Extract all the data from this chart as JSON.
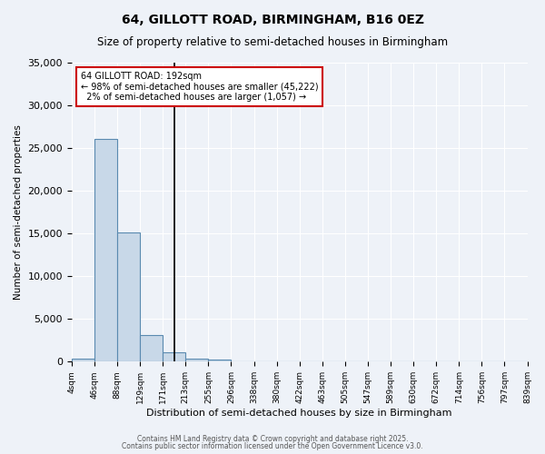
{
  "title": "64, GILLOTT ROAD, BIRMINGHAM, B16 0EZ",
  "subtitle": "Size of property relative to semi-detached houses in Birmingham",
  "xlabel": "Distribution of semi-detached houses by size in Birmingham",
  "ylabel": "Number of semi-detached properties",
  "bin_edges": [
    4,
    46,
    88,
    129,
    171,
    213,
    255,
    296,
    338,
    380,
    422,
    463,
    505,
    547,
    589,
    630,
    672,
    714,
    756,
    797,
    839
  ],
  "bin_labels": [
    "4sqm",
    "46sqm",
    "88sqm",
    "129sqm",
    "171sqm",
    "213sqm",
    "255sqm",
    "296sqm",
    "338sqm",
    "380sqm",
    "422sqm",
    "463sqm",
    "505sqm",
    "547sqm",
    "589sqm",
    "630sqm",
    "672sqm",
    "714sqm",
    "756sqm",
    "797sqm",
    "839sqm"
  ],
  "counts": [
    350,
    26100,
    15100,
    3100,
    1100,
    400,
    200,
    80,
    30,
    15,
    8,
    5,
    3,
    2,
    1,
    1,
    1,
    0,
    0,
    0
  ],
  "bar_color": "#c8d8e8",
  "bar_edge_color": "#5a8ab0",
  "property_size": 192,
  "vline_color": "#000000",
  "annotation_line1": "64 GILLOTT ROAD: 192sqm",
  "annotation_line2": "← 98% of semi-detached houses are smaller (45,222)",
  "annotation_line3": "  2% of semi-detached houses are larger (1,057) →",
  "annotation_box_color": "#ffffff",
  "annotation_box_edge_color": "#cc0000",
  "ylim": [
    0,
    35000
  ],
  "yticks": [
    0,
    5000,
    10000,
    15000,
    20000,
    25000,
    30000,
    35000
  ],
  "background_color": "#eef2f8",
  "grid_color": "#ffffff",
  "footer_line1": "Contains HM Land Registry data © Crown copyright and database right 2025.",
  "footer_line2": "Contains public sector information licensed under the Open Government Licence v3.0."
}
